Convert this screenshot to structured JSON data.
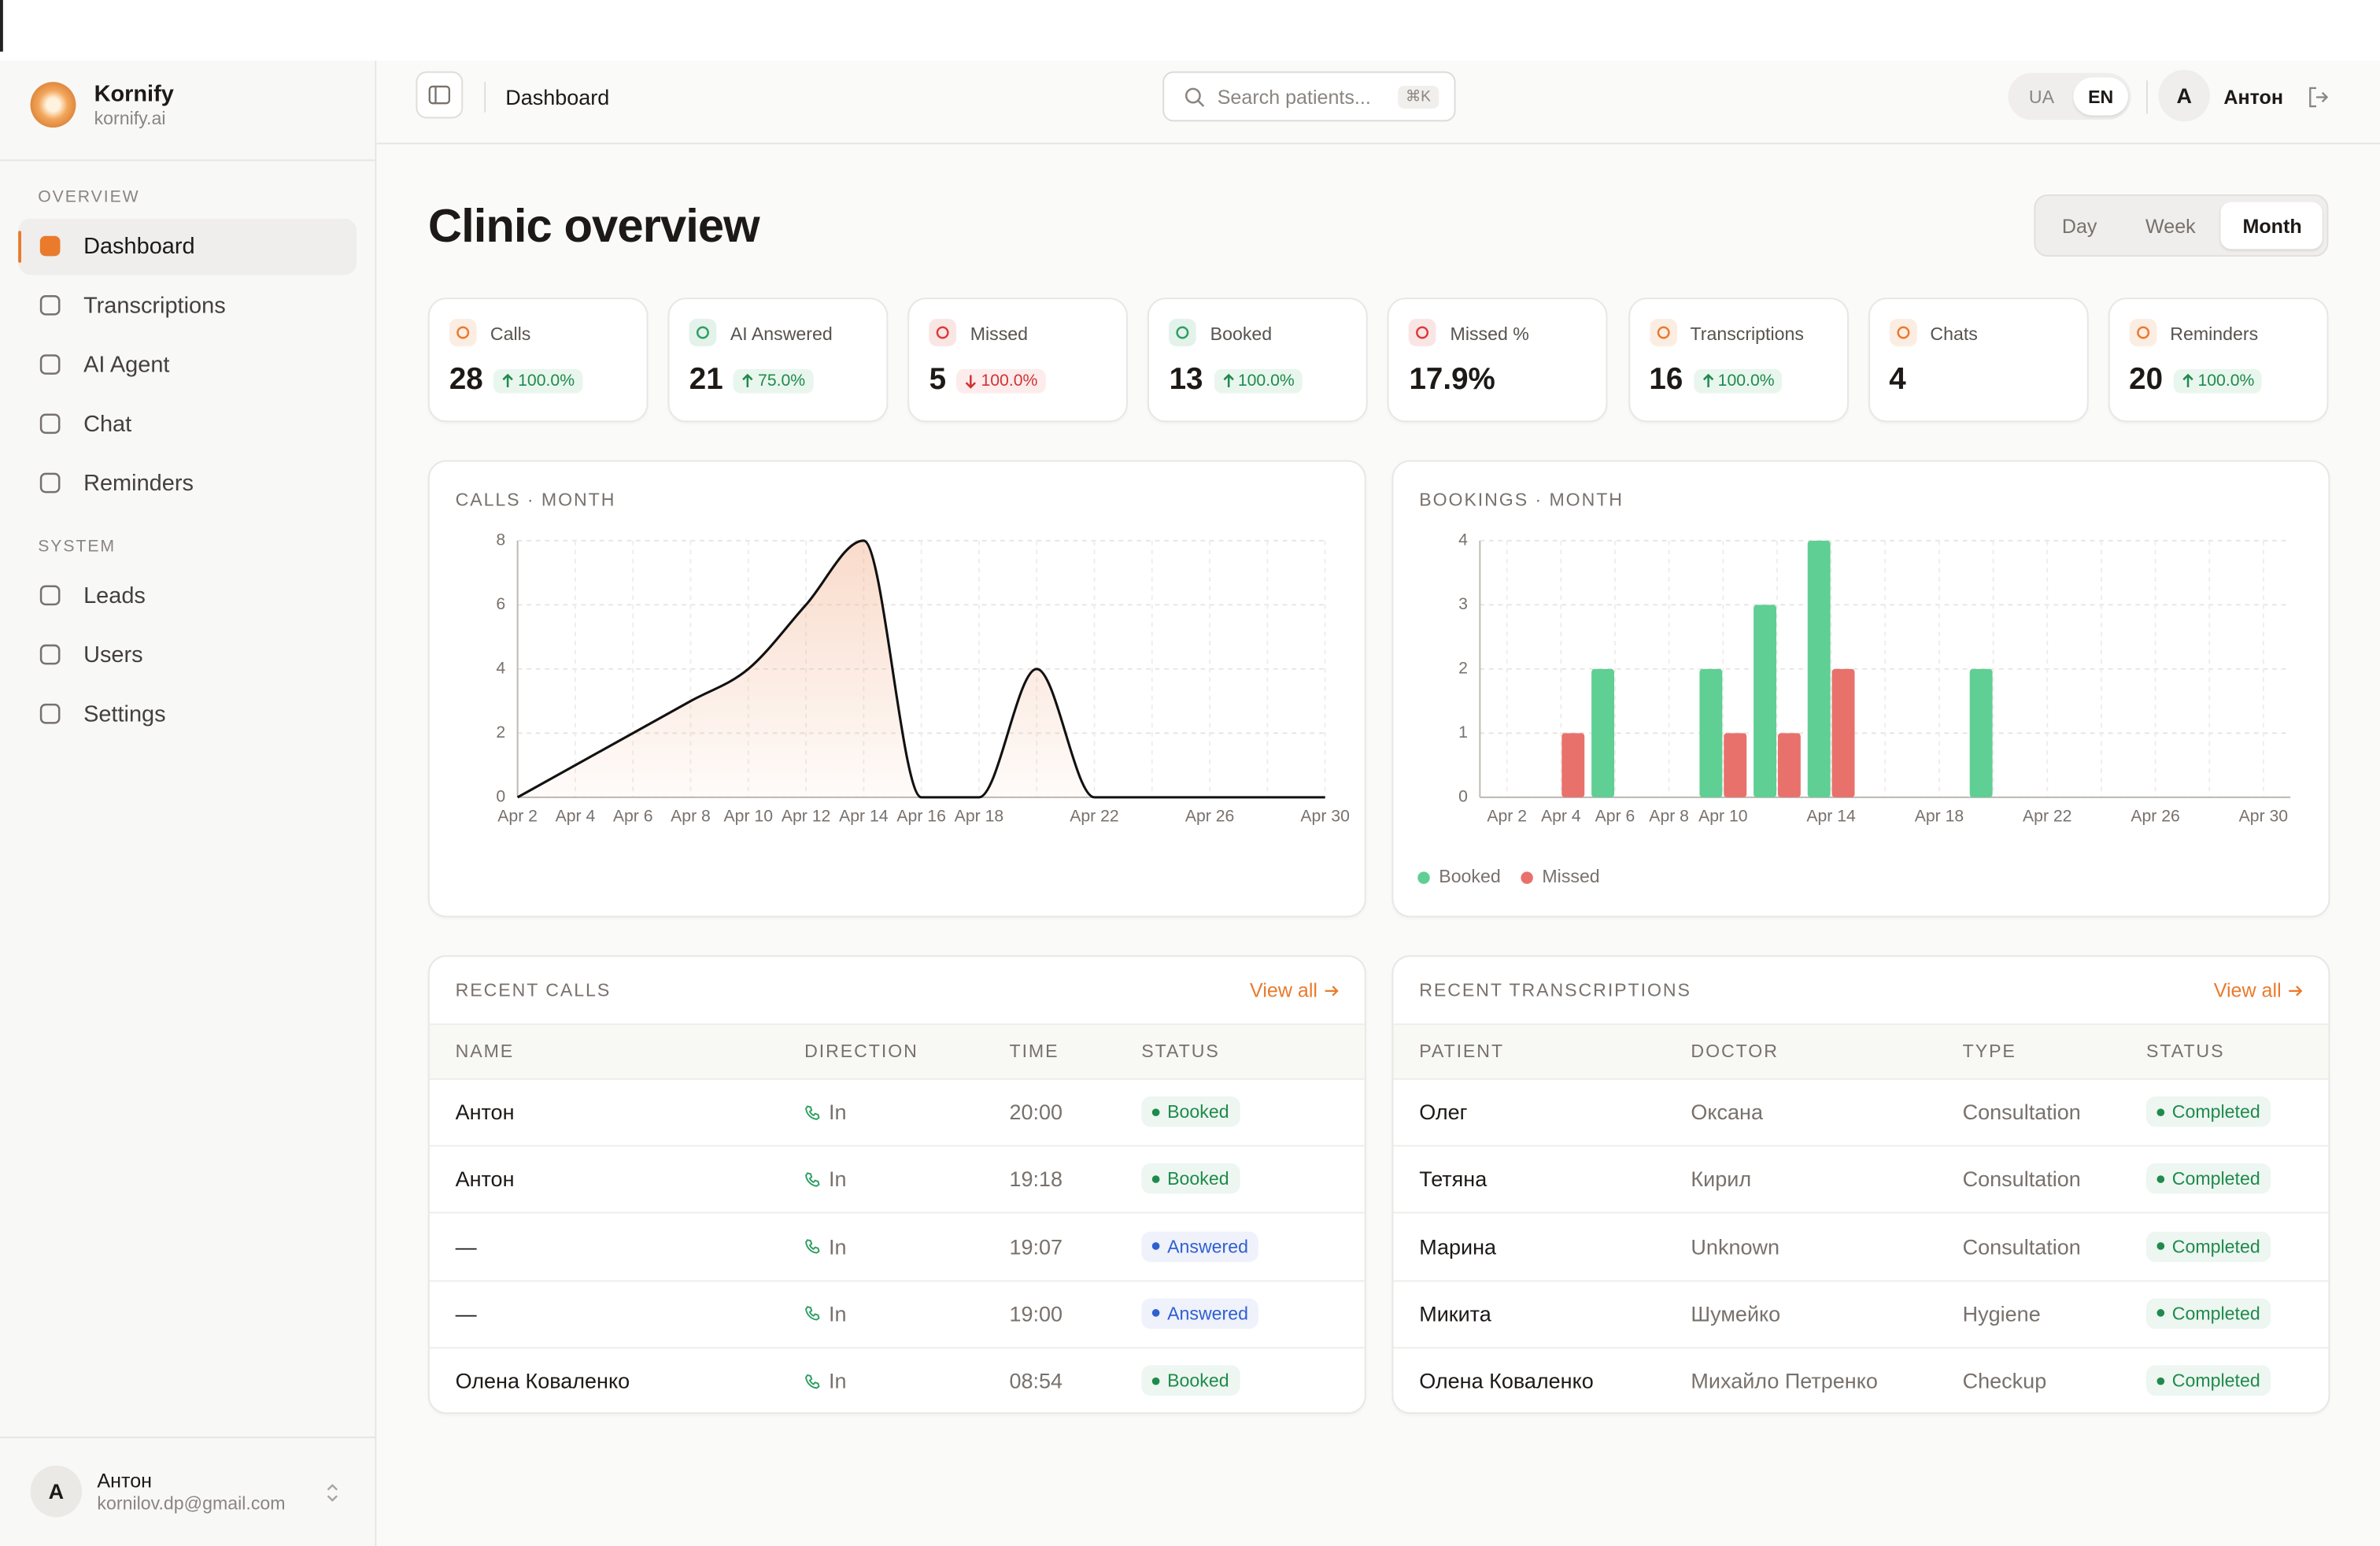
{
  "sidebar": {
    "brand": {
      "name": "Kornify",
      "domain": "kornify.ai"
    },
    "sections": [
      {
        "title": "OVERVIEW",
        "items": [
          "Dashboard",
          "Transcriptions",
          "AI Agent",
          "Chat",
          "Reminders"
        ]
      },
      {
        "title": "SYSTEM",
        "items": [
          "Leads",
          "Users",
          "Settings"
        ]
      }
    ],
    "user": {
      "initial": "A",
      "name": "Антон",
      "email": "kornilov.dp@gmail.com"
    }
  },
  "header": {
    "page": "Dashboard",
    "search_placeholder": "Search patients...",
    "shortcut": "⌘K",
    "languages": [
      "UA",
      "EN"
    ],
    "user": {
      "initial": "A",
      "name": "Антон"
    }
  },
  "title": "Clinic overview",
  "periods": [
    "Day",
    "Week",
    "Month"
  ],
  "stats": [
    {
      "label": "Calls",
      "value": 28,
      "change": "100.0%",
      "trend": "up",
      "icon_color": "#ea7a2c"
    },
    {
      "label": "AI Answered",
      "value": 21,
      "change": "75.0%",
      "trend": "up",
      "icon_color": "#2f9e63"
    },
    {
      "label": "Missed",
      "value": 5,
      "change": "100.0%",
      "trend": "down",
      "icon_color": "#dc3b3b"
    },
    {
      "label": "Booked",
      "value": 13,
      "change": "100.0%",
      "trend": "up",
      "icon_color": "#2f9e63"
    },
    {
      "label": "Missed %",
      "value": "17.9%",
      "icon_color": "#dc3b3b"
    },
    {
      "label": "Transcriptions",
      "value": 16,
      "change": "100.0%",
      "trend": "up",
      "icon_color": "#ea7a2c"
    },
    {
      "label": "Chats",
      "value": 4,
      "icon_color": "#ea7a2c"
    },
    {
      "label": "Reminders",
      "value": 20,
      "change": "100.0%",
      "trend": "up",
      "icon_color": "#ea7a2c"
    }
  ],
  "chart_data": [
    {
      "type": "area",
      "title": "CALLS · MONTH",
      "categories": [
        "Apr 2",
        "Apr 4",
        "Apr 6",
        "Apr 8",
        "Apr 10",
        "Apr 12",
        "Apr 14",
        "Apr 16",
        "Apr 18",
        null,
        "Apr 22",
        null,
        "Apr 26",
        null,
        "Apr 30"
      ],
      "values": [
        0,
        1,
        2,
        3,
        4,
        6,
        8,
        0,
        0,
        4,
        0,
        0,
        0,
        0,
        0
      ],
      "color": "#111111",
      "area_color": "#f0a57c",
      "ylim": [
        0,
        8
      ],
      "yticks": [
        0,
        2,
        4,
        6,
        8
      ],
      "grid": true
    },
    {
      "type": "bar",
      "title": "BOOKINGS · MONTH",
      "categories": [
        "Apr 2",
        "Apr 4",
        "Apr 6",
        "Apr 8",
        "Apr 10",
        null,
        "Apr 14",
        null,
        "Apr 18",
        null,
        "Apr 22",
        null,
        "Apr 26",
        null,
        "Apr 30"
      ],
      "series": [
        {
          "name": "Booked",
          "color": "#5fcf94",
          "values": [
            0,
            0,
            2,
            0,
            2,
            3,
            4,
            0,
            0,
            2,
            0,
            0,
            0,
            0,
            0
          ]
        },
        {
          "name": "Missed",
          "color": "#e8716b",
          "values": [
            0,
            1,
            0,
            0,
            1,
            1,
            2,
            0,
            0,
            0,
            0,
            0,
            0,
            0,
            0
          ]
        }
      ],
      "ylim": [
        0,
        4
      ],
      "yticks": [
        0,
        1,
        2,
        3,
        4
      ],
      "grid": true,
      "legend": "bottom-left"
    }
  ],
  "recent_calls": {
    "title": "RECENT CALLS",
    "link": "View all",
    "columns": [
      "NAME",
      "DIRECTION",
      "TIME",
      "STATUS"
    ],
    "rows": [
      {
        "name": "Антон",
        "direction": "In",
        "time": "20:00",
        "status": "Booked",
        "status_color": "#1f8a4c"
      },
      {
        "name": "Антон",
        "direction": "In",
        "time": "19:18",
        "status": "Booked",
        "status_color": "#1f8a4c"
      },
      {
        "name": "—",
        "direction": "In",
        "time": "19:07",
        "status": "Answered",
        "status_color": "#2f5fd0"
      },
      {
        "name": "—",
        "direction": "In",
        "time": "19:00",
        "status": "Answered",
        "status_color": "#2f5fd0"
      },
      {
        "name": "Олена Коваленко",
        "direction": "In",
        "time": "08:54",
        "status": "Booked",
        "status_color": "#1f8a4c"
      }
    ]
  },
  "recent_transcriptions": {
    "title": "RECENT TRANSCRIPTIONS",
    "link": "View all",
    "columns": [
      "PATIENT",
      "DOCTOR",
      "TYPE",
      "STATUS"
    ],
    "rows": [
      {
        "patient": "Олег",
        "doctor": "Оксана",
        "type": "Consultation",
        "status": "Completed",
        "status_color": "#1f8a4c"
      },
      {
        "patient": "Тетяна",
        "doctor": "Кирил",
        "type": "Consultation",
        "status": "Completed",
        "status_color": "#1f8a4c"
      },
      {
        "patient": "Марина",
        "doctor": "Unknown",
        "type": "Consultation",
        "status": "Completed",
        "status_color": "#1f8a4c"
      },
      {
        "patient": "Микита",
        "doctor": "Шумейко",
        "type": "Hygiene",
        "status": "Completed",
        "status_color": "#1f8a4c"
      },
      {
        "patient": "Олена Коваленко",
        "doctor": "Михайло Петренко",
        "type": "Checkup",
        "status": "Completed",
        "status_color": "#1f8a4c"
      }
    ]
  }
}
